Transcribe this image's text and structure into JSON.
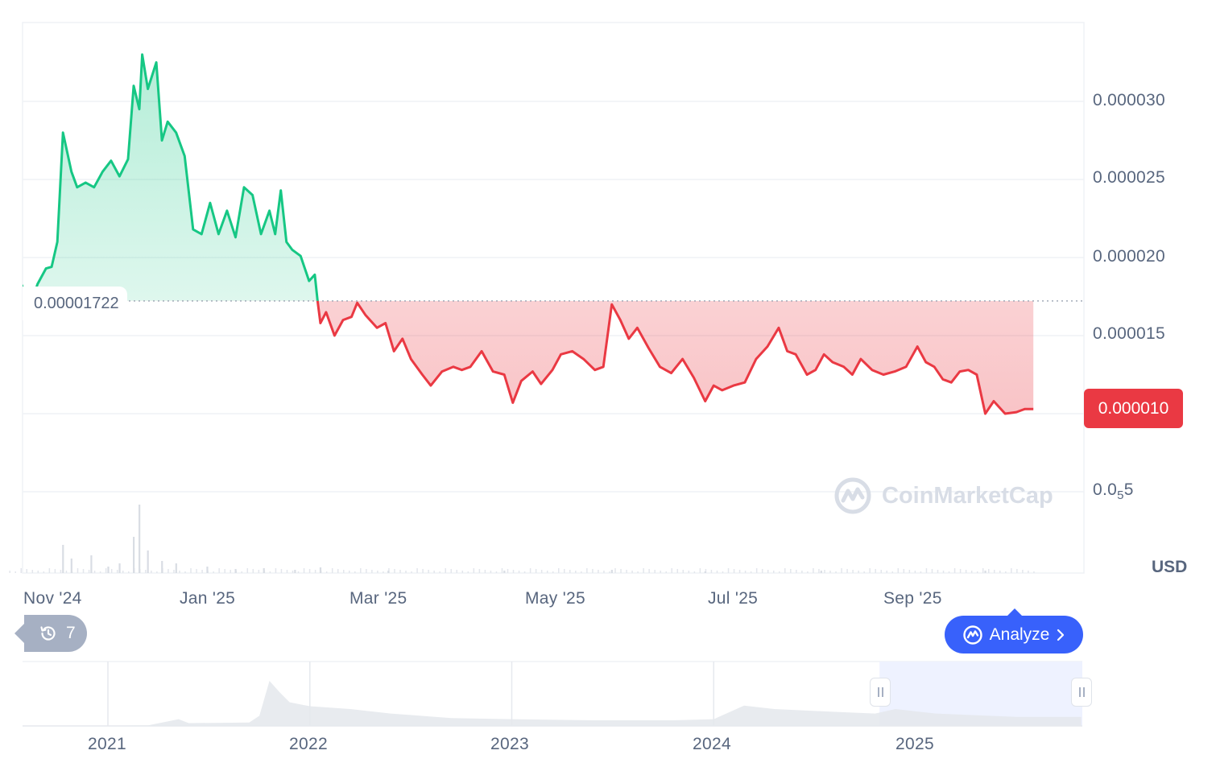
{
  "colors": {
    "up": "#16c784",
    "down": "#ea3943",
    "grid": "#eff2f5",
    "text": "#58667e",
    "accent": "#3861fb",
    "chip": "#a6b0c3",
    "navigator_fill": "#eef0f3",
    "navigator_selection": "#eef2ff"
  },
  "chart_data": [
    {
      "type": "area",
      "title": "",
      "xlabel": "",
      "ylabel": "",
      "currency": "USD",
      "ylim": [
        1.5e-06,
        3.55e-05
      ],
      "y_ticks": [
        {
          "value": 5e-06,
          "label_prefix": "0.0",
          "label_sub": "5",
          "label_suffix": "5"
        },
        {
          "value": 1e-05,
          "label": ""
        },
        {
          "value": 1.5e-05,
          "label": "0.000015"
        },
        {
          "value": 2e-05,
          "label": "0.000020"
        },
        {
          "value": 2.5e-05,
          "label": "0.000025"
        },
        {
          "value": 3e-05,
          "label": "0.000030"
        }
      ],
      "x_ticks": [
        {
          "date": "2024-11-01",
          "label": "Nov '24"
        },
        {
          "date": "2025-01-01",
          "label": "Jan '25"
        },
        {
          "date": "2025-03-01",
          "label": "Mar '25"
        },
        {
          "date": "2025-05-01",
          "label": "May '25"
        },
        {
          "date": "2025-07-01",
          "label": "Jul '25"
        },
        {
          "date": "2025-09-01",
          "label": "Sep '25"
        }
      ],
      "baseline": {
        "value": 1.722e-05,
        "label": "0.00001722"
      },
      "current_price": {
        "value": 1e-05,
        "label": "0.000010"
      },
      "series": [
        {
          "values_by_date": [
            [
              "2024-10-27",
              1.78e-05
            ],
            [
              "2024-10-29",
              1.92e-05
            ],
            [
              "2024-11-01",
              1.8e-05
            ],
            [
              "2024-11-04",
              1.72e-05
            ],
            [
              "2024-11-06",
              1.83e-05
            ],
            [
              "2024-11-09",
              1.93e-05
            ],
            [
              "2024-11-11",
              1.94e-05
            ],
            [
              "2024-11-13",
              2.1e-05
            ],
            [
              "2024-11-15",
              2.8e-05
            ],
            [
              "2024-11-18",
              2.55e-05
            ],
            [
              "2024-11-20",
              2.45e-05
            ],
            [
              "2024-11-23",
              2.48e-05
            ],
            [
              "2024-11-26",
              2.45e-05
            ],
            [
              "2024-11-29",
              2.55e-05
            ],
            [
              "2024-12-02",
              2.62e-05
            ],
            [
              "2024-12-05",
              2.52e-05
            ],
            [
              "2024-12-08",
              2.63e-05
            ],
            [
              "2024-12-10",
              3.1e-05
            ],
            [
              "2024-12-12",
              2.95e-05
            ],
            [
              "2024-12-13",
              3.3e-05
            ],
            [
              "2024-12-15",
              3.08e-05
            ],
            [
              "2024-12-18",
              3.25e-05
            ],
            [
              "2024-12-20",
              2.75e-05
            ],
            [
              "2024-12-22",
              2.87e-05
            ],
            [
              "2024-12-25",
              2.8e-05
            ],
            [
              "2024-12-28",
              2.65e-05
            ],
            [
              "2024-12-31",
              2.18e-05
            ],
            [
              "2025-01-03",
              2.15e-05
            ],
            [
              "2025-01-06",
              2.35e-05
            ],
            [
              "2025-01-09",
              2.15e-05
            ],
            [
              "2025-01-12",
              2.3e-05
            ],
            [
              "2025-01-15",
              2.13e-05
            ],
            [
              "2025-01-18",
              2.45e-05
            ],
            [
              "2025-01-21",
              2.4e-05
            ],
            [
              "2025-01-24",
              2.15e-05
            ],
            [
              "2025-01-27",
              2.3e-05
            ],
            [
              "2025-01-29",
              2.15e-05
            ],
            [
              "2025-01-31",
              2.43e-05
            ],
            [
              "2025-02-02",
              2.1e-05
            ],
            [
              "2025-02-04",
              2.05e-05
            ],
            [
              "2025-02-07",
              2.01e-05
            ],
            [
              "2025-02-10",
              1.85e-05
            ],
            [
              "2025-02-12",
              1.89e-05
            ],
            [
              "2025-02-13",
              1.72e-05
            ],
            [
              "2025-02-14",
              1.58e-05
            ],
            [
              "2025-02-16",
              1.65e-05
            ],
            [
              "2025-02-19",
              1.5e-05
            ],
            [
              "2025-02-22",
              1.6e-05
            ],
            [
              "2025-02-25",
              1.62e-05
            ],
            [
              "2025-02-27",
              1.71e-05
            ],
            [
              "2025-03-02",
              1.63e-05
            ],
            [
              "2025-03-06",
              1.55e-05
            ],
            [
              "2025-03-09",
              1.58e-05
            ],
            [
              "2025-03-12",
              1.4e-05
            ],
            [
              "2025-03-15",
              1.48e-05
            ],
            [
              "2025-03-18",
              1.35e-05
            ],
            [
              "2025-03-22",
              1.25e-05
            ],
            [
              "2025-03-25",
              1.18e-05
            ],
            [
              "2025-03-29",
              1.27e-05
            ],
            [
              "2025-04-02",
              1.3e-05
            ],
            [
              "2025-04-05",
              1.28e-05
            ],
            [
              "2025-04-08",
              1.3e-05
            ],
            [
              "2025-04-12",
              1.4e-05
            ],
            [
              "2025-04-16",
              1.27e-05
            ],
            [
              "2025-04-20",
              1.25e-05
            ],
            [
              "2025-04-23",
              1.07e-05
            ],
            [
              "2025-04-26",
              1.21e-05
            ],
            [
              "2025-04-30",
              1.27e-05
            ],
            [
              "2025-05-03",
              1.19e-05
            ],
            [
              "2025-05-07",
              1.28e-05
            ],
            [
              "2025-05-10",
              1.38e-05
            ],
            [
              "2025-05-14",
              1.4e-05
            ],
            [
              "2025-05-18",
              1.35e-05
            ],
            [
              "2025-05-22",
              1.28e-05
            ],
            [
              "2025-05-25",
              1.3e-05
            ],
            [
              "2025-05-28",
              1.7e-05
            ],
            [
              "2025-05-31",
              1.6e-05
            ],
            [
              "2025-06-03",
              1.48e-05
            ],
            [
              "2025-06-06",
              1.55e-05
            ],
            [
              "2025-06-10",
              1.42e-05
            ],
            [
              "2025-06-14",
              1.3e-05
            ],
            [
              "2025-06-18",
              1.26e-05
            ],
            [
              "2025-06-22",
              1.35e-05
            ],
            [
              "2025-06-26",
              1.23e-05
            ],
            [
              "2025-06-30",
              1.08e-05
            ],
            [
              "2025-07-03",
              1.18e-05
            ],
            [
              "2025-07-06",
              1.15e-05
            ],
            [
              "2025-07-10",
              1.18e-05
            ],
            [
              "2025-07-14",
              1.2e-05
            ],
            [
              "2025-07-18",
              1.35e-05
            ],
            [
              "2025-07-22",
              1.43e-05
            ],
            [
              "2025-07-26",
              1.55e-05
            ],
            [
              "2025-07-29",
              1.4e-05
            ],
            [
              "2025-08-01",
              1.38e-05
            ],
            [
              "2025-08-05",
              1.25e-05
            ],
            [
              "2025-08-08",
              1.28e-05
            ],
            [
              "2025-08-11",
              1.38e-05
            ],
            [
              "2025-08-14",
              1.33e-05
            ],
            [
              "2025-08-18",
              1.3e-05
            ],
            [
              "2025-08-21",
              1.25e-05
            ],
            [
              "2025-08-24",
              1.35e-05
            ],
            [
              "2025-08-28",
              1.28e-05
            ],
            [
              "2025-09-01",
              1.25e-05
            ],
            [
              "2025-09-05",
              1.27e-05
            ],
            [
              "2025-09-09",
              1.3e-05
            ],
            [
              "2025-09-13",
              1.43e-05
            ],
            [
              "2025-09-16",
              1.33e-05
            ],
            [
              "2025-09-19",
              1.3e-05
            ],
            [
              "2025-09-22",
              1.22e-05
            ],
            [
              "2025-09-25",
              1.2e-05
            ],
            [
              "2025-09-28",
              1.27e-05
            ],
            [
              "2025-10-01",
              1.28e-05
            ],
            [
              "2025-10-04",
              1.25e-05
            ],
            [
              "2025-10-07",
              1e-05
            ],
            [
              "2025-10-10",
              1.08e-05
            ],
            [
              "2025-10-14",
              1e-05
            ],
            [
              "2025-10-18",
              1.01e-05
            ],
            [
              "2025-10-21",
              1.03e-05
            ],
            [
              "2025-10-24",
              1.03e-05
            ]
          ]
        }
      ],
      "volume_by_date": [
        [
          "2024-11-15",
          0.35
        ],
        [
          "2024-11-18",
          0.18
        ],
        [
          "2024-11-25",
          0.22
        ],
        [
          "2024-12-01",
          0.08
        ],
        [
          "2024-12-05",
          0.12
        ],
        [
          "2024-12-10",
          0.45
        ],
        [
          "2024-12-12",
          0.85
        ],
        [
          "2024-12-15",
          0.28
        ],
        [
          "2024-12-20",
          0.15
        ],
        [
          "2024-12-25",
          0.12
        ],
        [
          "2025-01-05",
          0.08
        ],
        [
          "2025-01-15",
          0.05
        ],
        [
          "2025-01-25",
          0.06
        ],
        [
          "2025-02-05",
          0.04
        ],
        [
          "2025-02-14",
          0.07
        ],
        [
          "2025-03-10",
          0.03
        ],
        [
          "2025-04-20",
          0.03
        ],
        [
          "2025-05-28",
          0.04
        ],
        [
          "2025-06-30",
          0.02
        ],
        [
          "2025-08-10",
          0.03
        ],
        [
          "2025-10-07",
          0.03
        ]
      ]
    },
    {
      "type": "area",
      "title": "",
      "xlabel": "",
      "ylabel": "",
      "x_ticks": [
        {
          "year": 2021,
          "label": "2021"
        },
        {
          "year": 2022,
          "label": "2022"
        },
        {
          "year": 2023,
          "label": "2023"
        },
        {
          "year": 2024,
          "label": "2024"
        },
        {
          "year": 2025,
          "label": "2025"
        }
      ],
      "selected_range": [
        "2024-10-27",
        "2025-10-24"
      ],
      "series": [
        {
          "values_by_year": [
            [
              2020.6,
              0.0
            ],
            [
              2021.2,
              0.01
            ],
            [
              2021.35,
              0.12
            ],
            [
              2021.4,
              0.05
            ],
            [
              2021.7,
              0.06
            ],
            [
              2021.75,
              0.18
            ],
            [
              2021.8,
              0.8
            ],
            [
              2021.85,
              0.6
            ],
            [
              2021.9,
              0.42
            ],
            [
              2022.0,
              0.35
            ],
            [
              2022.2,
              0.3
            ],
            [
              2022.4,
              0.22
            ],
            [
              2022.7,
              0.14
            ],
            [
              2023.0,
              0.12
            ],
            [
              2023.4,
              0.1
            ],
            [
              2023.8,
              0.1
            ],
            [
              2024.0,
              0.12
            ],
            [
              2024.15,
              0.36
            ],
            [
              2024.3,
              0.3
            ],
            [
              2024.6,
              0.25
            ],
            [
              2024.8,
              0.22
            ],
            [
              2024.9,
              0.3
            ],
            [
              2025.1,
              0.22
            ],
            [
              2025.5,
              0.16
            ],
            [
              2025.82,
              0.16
            ]
          ]
        }
      ]
    }
  ],
  "labels": {
    "currency": "USD",
    "y_tick_5_prefix": "0.0",
    "y_tick_5_sub": "5",
    "y_tick_5_suffix": "5",
    "baseline": "0.00001722",
    "current": "0.000010",
    "history_count": "7",
    "analyze": "Analyze",
    "watermark": "CoinMarketCap"
  },
  "icons": {
    "history": "history-clock-icon",
    "analyze": "ai-logo-icon",
    "chevron": "chevron-right-icon",
    "watermark": "coinmarketcap-logo-icon"
  }
}
